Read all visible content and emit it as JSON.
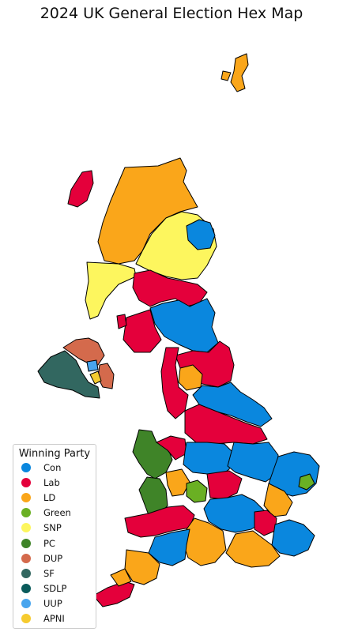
{
  "title": "2024 UK General Election Hex Map",
  "legend": {
    "title": "Winning Party",
    "parties": [
      {
        "label": "Con",
        "color": "#0a87de"
      },
      {
        "label": "Lab",
        "color": "#e4003b"
      },
      {
        "label": "LD",
        "color": "#faa61a"
      },
      {
        "label": "Green",
        "color": "#6ab023"
      },
      {
        "label": "SNP",
        "color": "#fdf65e"
      },
      {
        "label": "PC",
        "color": "#3f8428"
      },
      {
        "label": "DUP",
        "color": "#d46a4c"
      },
      {
        "label": "SF",
        "color": "#326760"
      },
      {
        "label": "SDLP",
        "color": "#0a5b5b"
      },
      {
        "label": "UUP",
        "color": "#48a5ee"
      },
      {
        "label": "APNI",
        "color": "#f6cb2f"
      }
    ]
  }
}
